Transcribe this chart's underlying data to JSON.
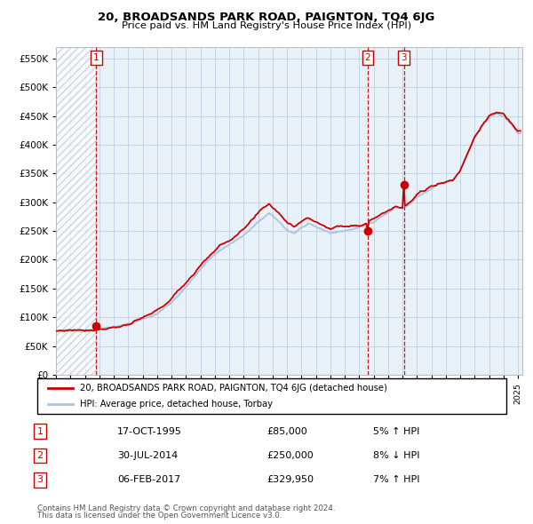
{
  "title": "20, BROADSANDS PARK ROAD, PAIGNTON, TQ4 6JG",
  "subtitle": "Price paid vs. HM Land Registry's House Price Index (HPI)",
  "transactions": [
    {
      "label": "1",
      "date": "1995-10-17",
      "price": 85000,
      "pct": "5%",
      "dir": "↑"
    },
    {
      "label": "2",
      "date": "2014-07-30",
      "price": 250000,
      "pct": "8%",
      "dir": "↓"
    },
    {
      "label": "3",
      "date": "2017-02-06",
      "price": 329950,
      "pct": "7%",
      "dir": "↑"
    }
  ],
  "legend_line1": "20, BROADSANDS PARK ROAD, PAIGNTON, TQ4 6JG (detached house)",
  "legend_line2": "HPI: Average price, detached house, Torbay",
  "footer1": "Contains HM Land Registry data © Crown copyright and database right 2024.",
  "footer2": "This data is licensed under the Open Government Licence v3.0.",
  "hpi_color": "#a8c4e0",
  "price_color": "#cc0000",
  "dot_color": "#cc0000",
  "vline_color": "#cc0000",
  "grid_color": "#c0d4e8",
  "bg_color": "#e8f0f8",
  "hatch_color": "#b8c8d8",
  "ylim": [
    0,
    570000
  ],
  "yticks": [
    0,
    50000,
    100000,
    150000,
    200000,
    250000,
    300000,
    350000,
    400000,
    450000,
    500000,
    550000
  ],
  "xstart": 1993,
  "xend": 2025,
  "trans_years": [
    1995.792,
    2014.581,
    2017.089
  ],
  "trans_prices": [
    85000,
    250000,
    329950
  ],
  "trans_labels": [
    "1",
    "2",
    "3"
  ]
}
